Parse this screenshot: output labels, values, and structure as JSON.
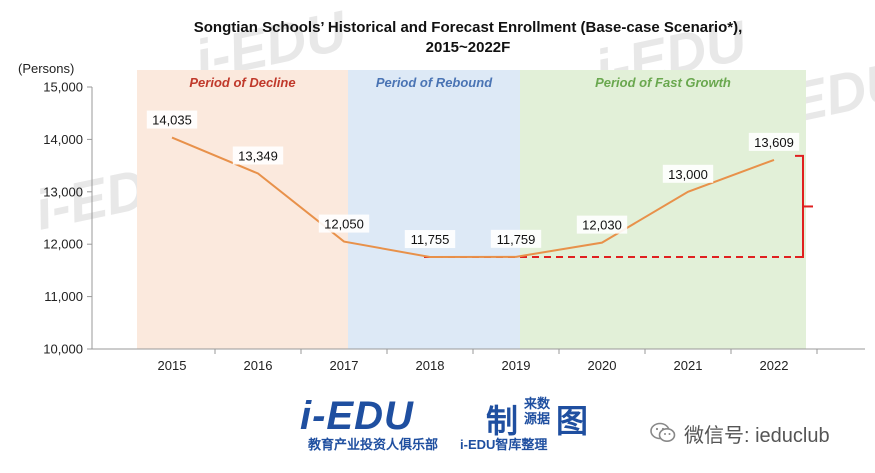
{
  "chart_data": {
    "type": "line",
    "title_line1": "Songtian Schools’ Historical and Forecast Enrollment (Base-case Scenario*),",
    "title_line2": "2015~2022F",
    "ylabel": "(Persons)",
    "x": [
      "2015",
      "2016",
      "2017",
      "2018",
      "2019",
      "2020",
      "2021",
      "2022"
    ],
    "y": [
      14035,
      13349,
      12050,
      11755,
      11759,
      12030,
      13000,
      13609
    ],
    "data_labels": [
      "14,035",
      "13,349",
      "12,050",
      "11,755",
      "11,759",
      "12,030",
      "13,000",
      "13,609"
    ],
    "ylim": [
      10000,
      15000
    ],
    "yticks": [
      10000,
      11000,
      12000,
      13000,
      14000,
      15000
    ],
    "ytick_labels": [
      "10,000",
      "11,000",
      "12,000",
      "13,000",
      "14,000",
      "15,000"
    ],
    "line_color": "#e8914a",
    "periods": [
      {
        "label": "Period of Decline",
        "from": "2015",
        "to": "2017",
        "fill": "#fbe9dd",
        "text_color": "#c0392b"
      },
      {
        "label": "Period of Rebound",
        "from": "2017",
        "to": "2019",
        "fill": "#dde9f6",
        "text_color": "#4a74b4"
      },
      {
        "label": "Period of Fast Growth",
        "from": "2019",
        "to": "2022",
        "fill": "#e2f0d8",
        "text_color": "#6aa84f"
      }
    ],
    "annotation": {
      "baseline_value": 11755,
      "top_value": 13609,
      "color": "#e02020"
    },
    "grid": false
  },
  "footer": {
    "logo_main": "i-EDU",
    "logo_sub": "教育产业投资人俱乐部",
    "logo_sub2": "i-EDU智库整理",
    "logo_zhi": "制",
    "logo_laiyuan": "来数 源据",
    "logo_tu": "图",
    "wechat_label": "微信号: ieduclub"
  },
  "watermark_text": "i-EDU"
}
